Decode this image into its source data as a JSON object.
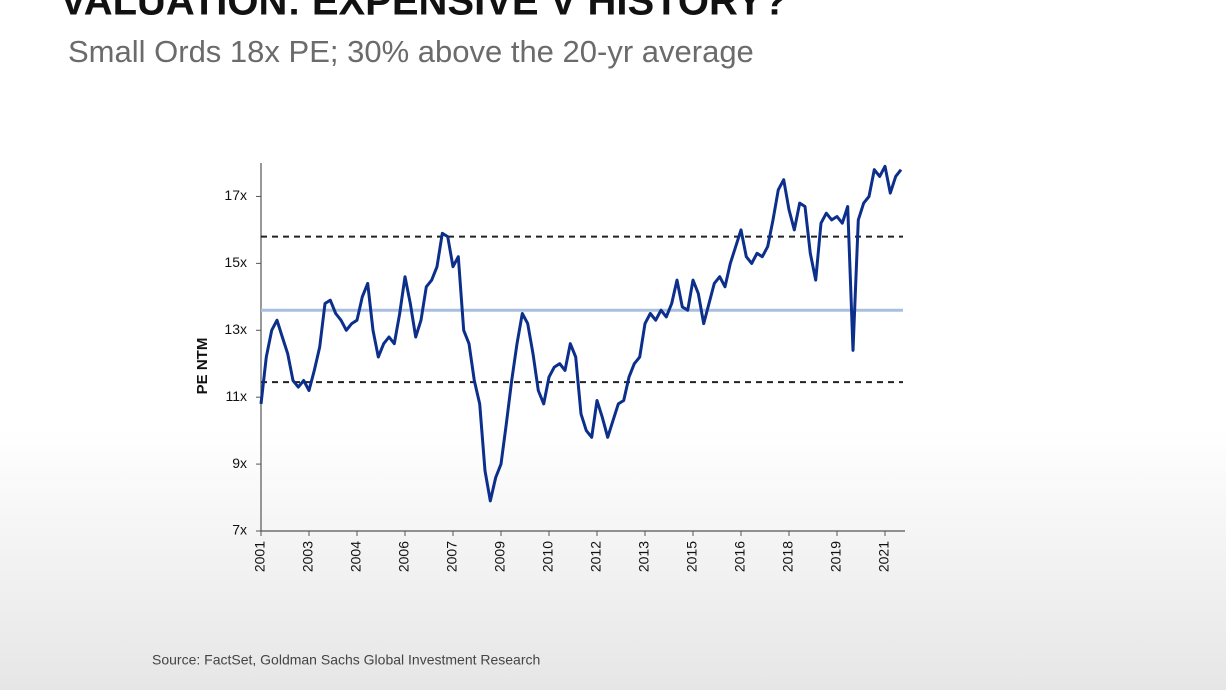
{
  "chart_data": {
    "type": "line",
    "title": "VALUATION: EXPENSIVE V HISTORY?",
    "subtitle": "Small Ords 18x PE; 30% above the 20-yr average",
    "ylabel": "PE NTM",
    "source": "Source: FactSet, Goldman Sachs Global Investment Research",
    "categories": [
      "2001",
      null,
      null,
      null,
      null,
      null,
      null,
      null,
      null,
      "2003",
      null,
      null,
      null,
      null,
      null,
      null,
      null,
      null,
      "2004",
      null,
      null,
      null,
      null,
      null,
      null,
      null,
      null,
      "2006",
      null,
      null,
      null,
      null,
      null,
      null,
      null,
      null,
      "2007",
      null,
      null,
      null,
      null,
      null,
      null,
      null,
      null,
      "2009",
      null,
      null,
      null,
      null,
      null,
      null,
      null,
      null,
      "2010",
      null,
      null,
      null,
      null,
      null,
      null,
      null,
      null,
      "2012",
      null,
      null,
      null,
      null,
      null,
      null,
      null,
      null,
      "2013",
      null,
      null,
      null,
      null,
      null,
      null,
      null,
      null,
      "2015",
      null,
      null,
      null,
      null,
      null,
      null,
      null,
      null,
      "2016",
      null,
      null,
      null,
      null,
      null,
      null,
      null,
      null,
      "2018",
      null,
      null,
      null,
      null,
      null,
      null,
      null,
      null,
      "2019",
      null,
      null,
      null,
      null,
      null,
      null,
      null,
      null,
      "2021",
      null,
      null,
      null
    ],
    "series": [
      {
        "name": "PE NTM",
        "color": "#0b2f8a",
        "values": [
          10.8,
          12.2,
          13.0,
          13.3,
          12.8,
          12.3,
          11.5,
          11.3,
          11.5,
          11.2,
          11.8,
          12.5,
          13.8,
          13.9,
          13.5,
          13.3,
          13.0,
          13.2,
          13.3,
          14.0,
          14.4,
          13.0,
          12.2,
          12.6,
          12.8,
          12.6,
          13.5,
          14.6,
          13.8,
          12.8,
          13.3,
          14.3,
          14.5,
          14.9,
          15.9,
          15.8,
          14.9,
          15.2,
          13.0,
          12.6,
          11.5,
          10.8,
          8.8,
          7.9,
          8.6,
          9.0,
          10.2,
          11.5,
          12.6,
          13.5,
          13.2,
          12.3,
          11.2,
          10.8,
          11.6,
          11.9,
          12.0,
          11.8,
          12.6,
          12.2,
          10.5,
          10.0,
          9.8,
          10.9,
          10.4,
          9.8,
          10.3,
          10.8,
          10.9,
          11.6,
          12.0,
          12.2,
          13.2,
          13.5,
          13.3,
          13.6,
          13.4,
          13.8,
          14.5,
          13.7,
          13.6,
          14.5,
          14.1,
          13.2,
          13.8,
          14.4,
          14.6,
          14.3,
          15.0,
          15.5,
          16.0,
          15.2,
          15.0,
          15.3,
          15.2,
          15.5,
          16.3,
          17.2,
          17.5,
          16.6,
          16.0,
          16.8,
          16.7,
          15.3,
          14.5,
          16.2,
          16.5,
          16.3,
          16.4,
          16.2,
          16.7,
          12.4,
          16.3,
          16.8,
          17.0,
          17.8,
          17.6,
          17.9,
          17.1,
          17.6,
          17.8
        ]
      }
    ],
    "hlines": [
      {
        "value": 15.8,
        "style": "dashed",
        "color": "#222222"
      },
      {
        "value": 13.6,
        "style": "solid",
        "color": "#a9bfe0"
      },
      {
        "value": 11.45,
        "style": "dashed",
        "color": "#222222"
      }
    ],
    "ylim": [
      7,
      18
    ],
    "yticks": [
      {
        "value": 7,
        "label": "7x"
      },
      {
        "value": 9,
        "label": "9x"
      },
      {
        "value": 11,
        "label": "11x"
      },
      {
        "value": 13,
        "label": "13x"
      },
      {
        "value": 15,
        "label": "15x"
      },
      {
        "value": 17,
        "label": "17x"
      }
    ]
  }
}
